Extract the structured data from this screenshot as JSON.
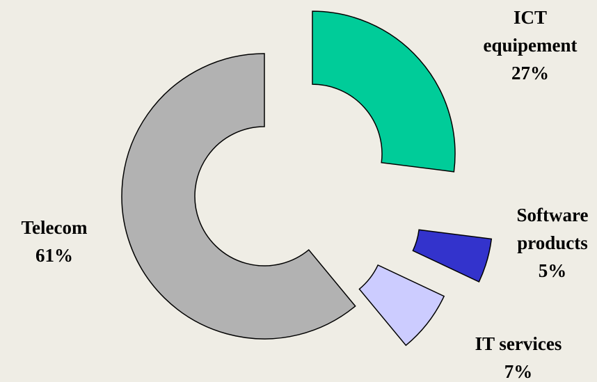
{
  "chart_data": {
    "type": "pie",
    "variant": "exploded-donut",
    "slices": [
      {
        "name": "ICT equipement",
        "label_lines": [
          "ICT",
          "equipement",
          "27%"
        ],
        "value": 27,
        "color": "#00cc99"
      },
      {
        "name": "Software products",
        "label_lines": [
          "Software",
          "products",
          "5%"
        ],
        "value": 5,
        "color": "#3333cc"
      },
      {
        "name": "IT services",
        "label_lines": [
          "IT services",
          "7%"
        ],
        "value": 7,
        "color": "#ccccff"
      },
      {
        "name": "Telecom",
        "label_lines": [
          "Telecom",
          "61%"
        ],
        "value": 61,
        "color": "#b2b2b2"
      }
    ],
    "legend": "none",
    "background": "#efede5"
  }
}
